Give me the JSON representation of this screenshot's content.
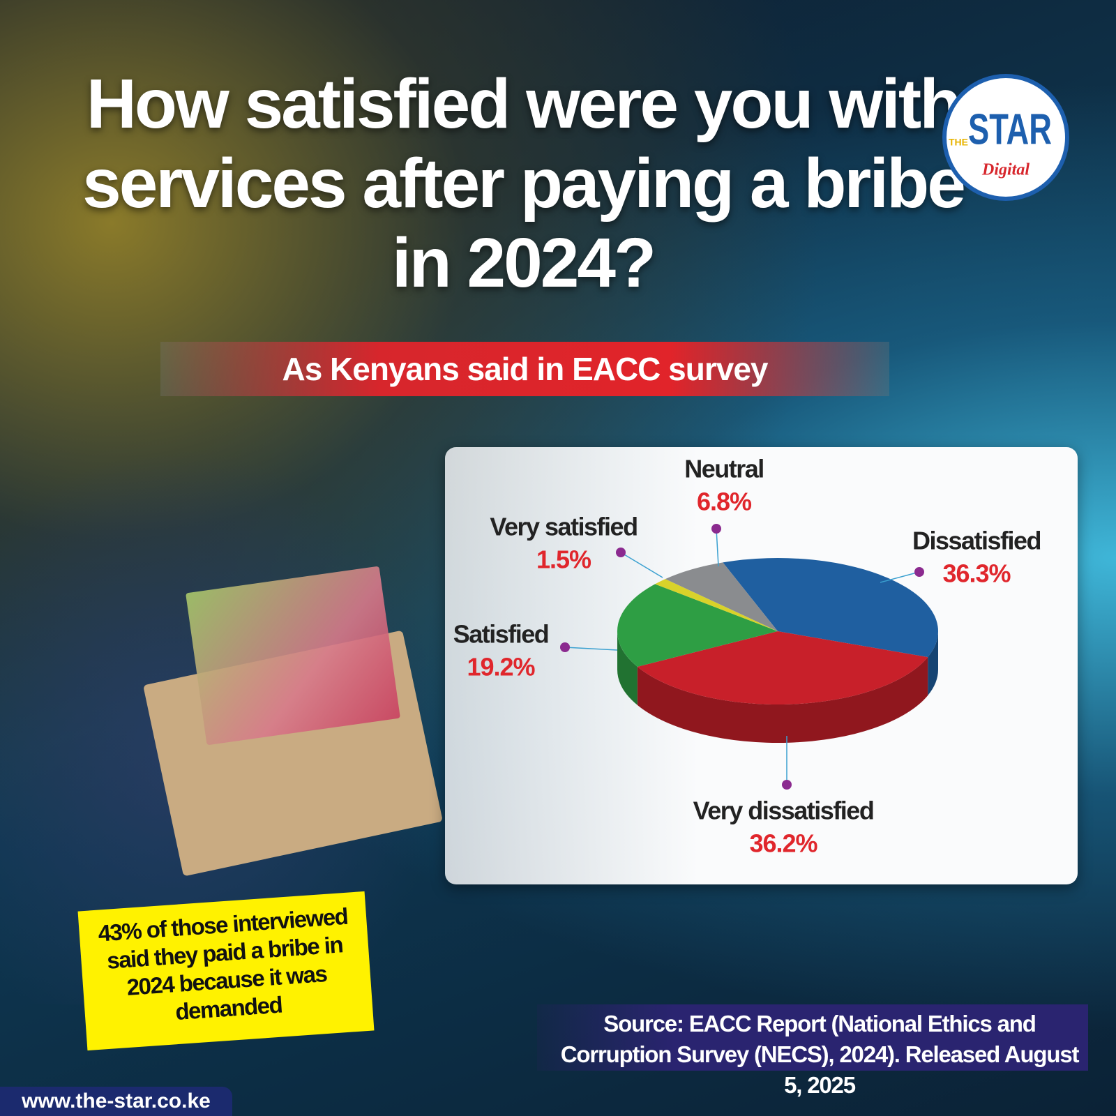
{
  "chart_data": {
    "type": "pie",
    "title": "How satisfied were you with services after paying a bribe in 2024?",
    "subtitle": "As Kenyans said in EACC survey",
    "categories": [
      "Dissatisfied",
      "Very dissatisfied",
      "Satisfied",
      "Very satisfied",
      "Neutral"
    ],
    "values": [
      36.3,
      36.2,
      19.2,
      1.5,
      6.8
    ],
    "value_labels": [
      "36.3%",
      "36.2%",
      "19.2%",
      "1.5%",
      "6.8%"
    ],
    "colors": [
      "#1f5fa0",
      "#c8202a",
      "#2e9e44",
      "#d9d22a",
      "#8a8c8f"
    ],
    "note": "43% of those interviewed said they paid a bribe in 2024 because it was demanded",
    "source": "Source: EACC Report (National Ethics and Corruption Survey (NECS), 2024). Released August 5, 2025"
  },
  "branding": {
    "logo_the": "THE",
    "logo_star": "STAR",
    "logo_digital": "Digital",
    "url": "www.the-star.co.ke"
  }
}
